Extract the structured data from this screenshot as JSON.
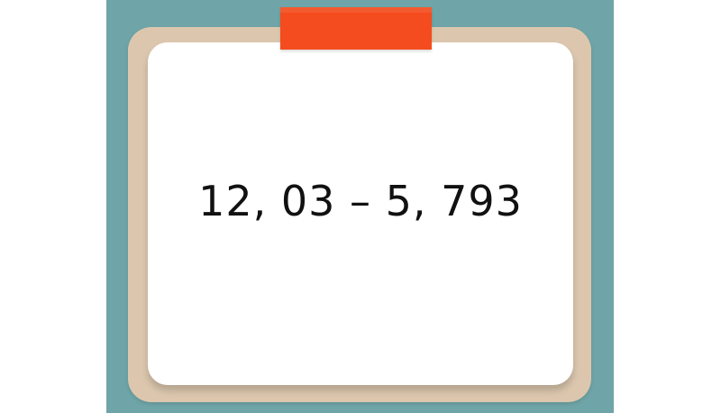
{
  "card": {
    "expression": "12, 03 – 5, 793"
  },
  "colors": {
    "teal": "#6fa5a8",
    "frame": "#dcc7ae",
    "paper": "#ffffff",
    "tape": "#f44c1e",
    "text": "#111111"
  }
}
